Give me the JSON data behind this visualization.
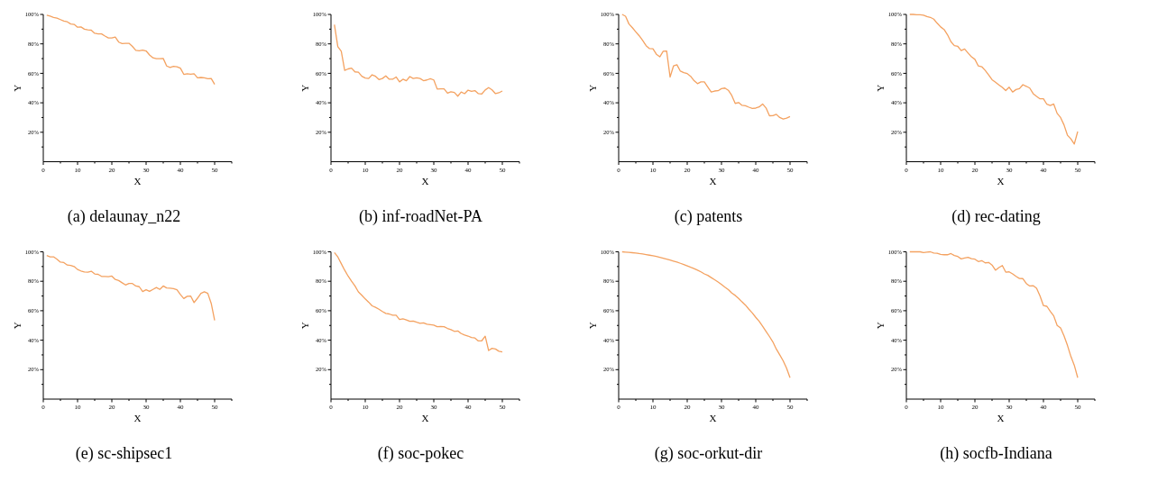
{
  "chart_data": [
    {
      "type": "line",
      "title": "(a) delaunay_n22",
      "xlabel": "X",
      "ylabel": "Y",
      "xlim": [
        0,
        55
      ],
      "ylim": [
        0,
        100
      ],
      "xticks": [
        0,
        {
          "value": 5,
          "label": null
        },
        10,
        {
          "value": 15,
          "label": null
        },
        20,
        {
          "value": 25,
          "label": null
        },
        30,
        {
          "value": 35,
          "label": null
        },
        40,
        {
          "value": 45,
          "label": null
        },
        50,
        {
          "value": 55,
          "label": null
        }
      ],
      "yticks": [
        {
          "value": 10,
          "label": null
        },
        {
          "value": 20,
          "label": "20%"
        },
        {
          "value": 30,
          "label": null
        },
        {
          "value": 40,
          "label": "40%"
        },
        {
          "value": 50,
          "label": null
        },
        {
          "value": 60,
          "label": "60%"
        },
        {
          "value": 70,
          "label": null
        },
        {
          "value": 80,
          "label": "80%"
        },
        {
          "value": 90,
          "label": null
        },
        {
          "value": 100,
          "label": "100%"
        }
      ],
      "x": [
        1,
        2,
        3,
        4,
        5,
        6,
        7,
        8,
        9,
        10,
        11,
        12,
        13,
        14,
        15,
        16,
        17,
        18,
        19,
        20,
        21,
        22,
        23,
        24,
        25,
        26,
        27,
        28,
        29,
        30,
        31,
        32,
        33,
        34,
        35,
        36,
        37,
        38,
        39,
        40,
        41,
        42,
        43,
        44,
        45,
        46,
        47,
        48,
        49,
        50
      ],
      "series": [
        {
          "color": "#f4a261",
          "values": [
            99.5,
            98.8,
            98,
            97.5,
            96.5,
            95.5,
            95,
            93.5,
            93.2,
            91.3,
            91.5,
            90,
            89.5,
            89.3,
            87.2,
            86.8,
            86.8,
            85.3,
            84,
            84,
            84.6,
            81.2,
            80.2,
            80.4,
            80.4,
            78.3,
            75.6,
            75.3,
            75.8,
            75.2,
            72.5,
            70.5,
            69.9,
            69.9,
            70.1,
            65,
            64,
            64.7,
            64.5,
            63.5,
            59.3,
            59.7,
            59.4,
            59.7,
            57,
            57.2,
            57,
            56.3,
            56.5,
            52.5
          ]
        }
      ]
    },
    {
      "type": "line",
      "title": "(b) inf-roadNet-PA",
      "xlabel": "X",
      "ylabel": "Y",
      "xlim": [
        0,
        55
      ],
      "ylim": [
        0,
        100
      ],
      "xticks": [
        0,
        {
          "value": 5,
          "label": null
        },
        10,
        {
          "value": 15,
          "label": null
        },
        20,
        {
          "value": 25,
          "label": null
        },
        30,
        {
          "value": 35,
          "label": null
        },
        40,
        {
          "value": 45,
          "label": null
        },
        50,
        {
          "value": 55,
          "label": null
        }
      ],
      "yticks": [
        {
          "value": 10,
          "label": null
        },
        {
          "value": 20,
          "label": "20%"
        },
        {
          "value": 30,
          "label": null
        },
        {
          "value": 40,
          "label": "40%"
        },
        {
          "value": 50,
          "label": null
        },
        {
          "value": 60,
          "label": "60%"
        },
        {
          "value": 70,
          "label": null
        },
        {
          "value": 80,
          "label": "80%"
        },
        {
          "value": 90,
          "label": null
        },
        {
          "value": 100,
          "label": "100%"
        }
      ],
      "x": [
        1,
        2,
        3,
        4,
        5,
        6,
        7,
        8,
        9,
        10,
        11,
        12,
        13,
        14,
        15,
        16,
        17,
        18,
        19,
        20,
        21,
        22,
        23,
        24,
        25,
        26,
        27,
        28,
        29,
        30,
        31,
        32,
        33,
        34,
        35,
        36,
        37,
        38,
        39,
        40,
        41,
        42,
        43,
        44,
        45,
        46,
        47,
        48,
        49,
        50
      ],
      "series": [
        {
          "color": "#f4a261",
          "values": [
            93,
            78,
            75,
            62,
            63,
            63.5,
            61,
            60.8,
            58,
            56.8,
            56.5,
            59,
            58,
            55.8,
            56.5,
            58.3,
            56,
            56,
            57.5,
            54.2,
            56,
            55,
            57.8,
            56.5,
            57,
            56.5,
            55,
            55.5,
            56.3,
            55.5,
            49.3,
            49.5,
            49.5,
            46.5,
            47.5,
            47,
            44.5,
            47.3,
            46.2,
            48.6,
            47.8,
            48.3,
            46.2,
            46,
            48.7,
            50.3,
            48.8,
            46.2,
            46.8,
            48
          ]
        }
      ]
    },
    {
      "type": "line",
      "title": "(c) patents",
      "xlabel": "X",
      "ylabel": "Y",
      "xlim": [
        0,
        55
      ],
      "ylim": [
        0,
        100
      ],
      "xticks": [
        0,
        {
          "value": 5,
          "label": null
        },
        10,
        {
          "value": 15,
          "label": null
        },
        20,
        {
          "value": 25,
          "label": null
        },
        30,
        {
          "value": 35,
          "label": null
        },
        40,
        {
          "value": 45,
          "label": null
        },
        50,
        {
          "value": 55,
          "label": null
        }
      ],
      "yticks": [
        {
          "value": 10,
          "label": null
        },
        {
          "value": 20,
          "label": "20%"
        },
        {
          "value": 30,
          "label": null
        },
        {
          "value": 40,
          "label": "40%"
        },
        {
          "value": 50,
          "label": null
        },
        {
          "value": 60,
          "label": "60%"
        },
        {
          "value": 70,
          "label": null
        },
        {
          "value": 80,
          "label": "80%"
        },
        {
          "value": 90,
          "label": null
        },
        {
          "value": 100,
          "label": "100%"
        }
      ],
      "x": [
        1,
        2,
        3,
        4,
        5,
        6,
        7,
        8,
        9,
        10,
        11,
        12,
        13,
        14,
        15,
        16,
        17,
        18,
        19,
        20,
        21,
        22,
        23,
        24,
        25,
        26,
        27,
        28,
        29,
        30,
        31,
        32,
        33,
        34,
        35,
        36,
        37,
        38,
        39,
        40,
        41,
        42,
        43,
        44,
        45,
        46,
        47,
        48,
        49,
        50
      ],
      "series": [
        {
          "color": "#f4a261",
          "values": [
            100,
            98.8,
            93.5,
            91,
            88.2,
            85.5,
            82.3,
            78.8,
            76.8,
            76.7,
            73,
            71.2,
            75,
            75.2,
            57.5,
            65,
            65.8,
            61.5,
            60.5,
            59.8,
            58,
            55,
            53,
            54.2,
            54.2,
            50.7,
            47.3,
            48,
            48.2,
            49.6,
            50,
            48.5,
            45,
            39.6,
            40.2,
            38.3,
            38,
            37,
            36.2,
            36.4,
            37.2,
            39.2,
            36.5,
            31.2,
            31.3,
            32.2,
            30,
            29,
            29.6,
            30.6
          ]
        }
      ]
    },
    {
      "type": "line",
      "title": "(d) rec-dating",
      "xlabel": "X",
      "ylabel": "Y",
      "xlim": [
        0,
        55
      ],
      "ylim": [
        0,
        100
      ],
      "xticks": [
        0,
        {
          "value": 5,
          "label": null
        },
        10,
        {
          "value": 15,
          "label": null
        },
        20,
        {
          "value": 25,
          "label": null
        },
        30,
        {
          "value": 35,
          "label": null
        },
        40,
        {
          "value": 45,
          "label": null
        },
        50,
        {
          "value": 55,
          "label": null
        }
      ],
      "yticks": [
        {
          "value": 10,
          "label": null
        },
        {
          "value": 20,
          "label": "20%"
        },
        {
          "value": 30,
          "label": null
        },
        {
          "value": 40,
          "label": "40%"
        },
        {
          "value": 50,
          "label": null
        },
        {
          "value": 60,
          "label": "60%"
        },
        {
          "value": 70,
          "label": null
        },
        {
          "value": 80,
          "label": "80%"
        },
        {
          "value": 90,
          "label": null
        },
        {
          "value": 100,
          "label": "100%"
        }
      ],
      "x": [
        1,
        2,
        3,
        4,
        5,
        6,
        7,
        8,
        9,
        10,
        11,
        12,
        13,
        14,
        15,
        16,
        17,
        18,
        19,
        20,
        21,
        22,
        23,
        24,
        25,
        26,
        27,
        28,
        29,
        30,
        31,
        32,
        33,
        34,
        35,
        36,
        37,
        38,
        39,
        40,
        41,
        42,
        43,
        44,
        45,
        46,
        47,
        48,
        49,
        50
      ],
      "series": [
        {
          "color": "#f4a261",
          "values": [
            100,
            100,
            99.8,
            99.8,
            99.5,
            98.5,
            98,
            96.8,
            94,
            91.5,
            89.8,
            86.2,
            81.5,
            78.8,
            78.3,
            75.5,
            76.5,
            73.8,
            71.2,
            69.5,
            65,
            64.5,
            62,
            59,
            55.7,
            54,
            52.2,
            50.5,
            48.3,
            50.6,
            47.3,
            49,
            49.6,
            52.3,
            51.2,
            50,
            46.2,
            44.3,
            42.7,
            42.7,
            39,
            38.2,
            39.2,
            32.8,
            30,
            25,
            18,
            15.5,
            12,
            20.5
          ]
        }
      ]
    },
    {
      "type": "line",
      "title": "(e) sc-shipsec1",
      "xlabel": "X",
      "ylabel": "Y",
      "xlim": [
        0,
        55
      ],
      "ylim": [
        0,
        100
      ],
      "xticks": [
        0,
        {
          "value": 5,
          "label": null
        },
        10,
        {
          "value": 15,
          "label": null
        },
        20,
        {
          "value": 25,
          "label": null
        },
        30,
        {
          "value": 35,
          "label": null
        },
        40,
        {
          "value": 45,
          "label": null
        },
        50,
        {
          "value": 55,
          "label": null
        }
      ],
      "yticks": [
        {
          "value": 10,
          "label": null
        },
        {
          "value": 20,
          "label": "20%"
        },
        {
          "value": 30,
          "label": null
        },
        {
          "value": 40,
          "label": "40%"
        },
        {
          "value": 50,
          "label": null
        },
        {
          "value": 60,
          "label": "60%"
        },
        {
          "value": 70,
          "label": null
        },
        {
          "value": 80,
          "label": "80%"
        },
        {
          "value": 90,
          "label": null
        },
        {
          "value": 100,
          "label": "100%"
        }
      ],
      "x": [
        1,
        2,
        3,
        4,
        5,
        6,
        7,
        8,
        9,
        10,
        11,
        12,
        13,
        14,
        15,
        16,
        17,
        18,
        19,
        20,
        21,
        22,
        23,
        24,
        25,
        26,
        27,
        28,
        29,
        30,
        31,
        32,
        33,
        34,
        35,
        36,
        37,
        38,
        39,
        40,
        41,
        42,
        43,
        44,
        45,
        46,
        47,
        48,
        49,
        50
      ],
      "series": [
        {
          "color": "#f4a261",
          "values": [
            97.5,
            96.6,
            96.6,
            95,
            93,
            92.7,
            91,
            90.8,
            90,
            88,
            87,
            86.3,
            86.2,
            86.8,
            85,
            84.7,
            83.3,
            83.3,
            83.1,
            83.5,
            81.2,
            80.5,
            79,
            77.5,
            78.5,
            78.5,
            76.8,
            76.3,
            73,
            74.2,
            73.2,
            74.5,
            75.8,
            74.5,
            76.8,
            75.5,
            75.3,
            75,
            74.2,
            71,
            68.3,
            69.8,
            70,
            65.5,
            68.5,
            71.8,
            72.8,
            71.8,
            65,
            53.5
          ]
        }
      ]
    },
    {
      "type": "line",
      "title": "(f) soc-pokec",
      "xlabel": "X",
      "ylabel": "Y",
      "xlim": [
        0,
        55
      ],
      "ylim": [
        0,
        100
      ],
      "xticks": [
        0,
        {
          "value": 5,
          "label": null
        },
        10,
        {
          "value": 15,
          "label": null
        },
        20,
        {
          "value": 25,
          "label": null
        },
        30,
        {
          "value": 35,
          "label": null
        },
        40,
        {
          "value": 45,
          "label": null
        },
        50,
        {
          "value": 55,
          "label": null
        }
      ],
      "yticks": [
        {
          "value": 10,
          "label": null
        },
        {
          "value": 20,
          "label": "20%"
        },
        {
          "value": 30,
          "label": null
        },
        {
          "value": 40,
          "label": "40%"
        },
        {
          "value": 50,
          "label": null
        },
        {
          "value": 60,
          "label": "60%"
        },
        {
          "value": 70,
          "label": null
        },
        {
          "value": 80,
          "label": "80%"
        },
        {
          "value": 90,
          "label": null
        },
        {
          "value": 100,
          "label": "100%"
        }
      ],
      "x": [
        1,
        2,
        3,
        4,
        5,
        6,
        7,
        8,
        9,
        10,
        11,
        12,
        13,
        14,
        15,
        16,
        17,
        18,
        19,
        20,
        21,
        22,
        23,
        24,
        25,
        26,
        27,
        28,
        29,
        30,
        31,
        32,
        33,
        34,
        35,
        36,
        37,
        38,
        39,
        40,
        41,
        42,
        43,
        44,
        45,
        46,
        47,
        48,
        49,
        50
      ],
      "series": [
        {
          "color": "#f4a261",
          "values": [
            99.5,
            96.5,
            92,
            87.5,
            83.5,
            80,
            76.8,
            72.8,
            70.5,
            68,
            65.8,
            63.3,
            62.3,
            61,
            59.5,
            58.2,
            57.8,
            57,
            57,
            54,
            54.5,
            53.8,
            52.8,
            53,
            52.2,
            51.5,
            51.8,
            50.8,
            50.5,
            50.2,
            49.2,
            49.3,
            49.2,
            48,
            47.2,
            46,
            46.3,
            44.5,
            43.5,
            42.8,
            41.8,
            41.5,
            39.5,
            39.6,
            42.7,
            33,
            34.5,
            34,
            32.5,
            32
          ]
        }
      ]
    },
    {
      "type": "line",
      "title": "(g) soc-orkut-dir",
      "xlabel": "X",
      "ylabel": "Y",
      "xlim": [
        0,
        55
      ],
      "ylim": [
        0,
        100
      ],
      "xticks": [
        0,
        {
          "value": 5,
          "label": null
        },
        10,
        {
          "value": 15,
          "label": null
        },
        20,
        {
          "value": 25,
          "label": null
        },
        30,
        {
          "value": 35,
          "label": null
        },
        40,
        {
          "value": 45,
          "label": null
        },
        50,
        {
          "value": 55,
          "label": null
        }
      ],
      "yticks": [
        {
          "value": 10,
          "label": null
        },
        {
          "value": 20,
          "label": "20%"
        },
        {
          "value": 30,
          "label": null
        },
        {
          "value": 40,
          "label": "40%"
        },
        {
          "value": 50,
          "label": null
        },
        {
          "value": 60,
          "label": "60%"
        },
        {
          "value": 70,
          "label": null
        },
        {
          "value": 80,
          "label": "80%"
        },
        {
          "value": 90,
          "label": null
        },
        {
          "value": 100,
          "label": "100%"
        }
      ],
      "x": [
        1,
        2,
        3,
        4,
        5,
        6,
        7,
        8,
        9,
        10,
        11,
        12,
        13,
        14,
        15,
        16,
        17,
        18,
        19,
        20,
        21,
        22,
        23,
        24,
        25,
        26,
        27,
        28,
        29,
        30,
        31,
        32,
        33,
        34,
        35,
        36,
        37,
        38,
        39,
        40,
        41,
        42,
        43,
        44,
        45,
        46,
        47,
        48,
        49,
        50
      ],
      "series": [
        {
          "color": "#f4a261",
          "values": [
            100,
            99.8,
            99.6,
            99.4,
            99.2,
            98.8,
            98.5,
            98.1,
            97.7,
            97.3,
            96.8,
            96.2,
            95.6,
            95,
            94.4,
            93.7,
            93,
            92.2,
            91.4,
            90.5,
            89.5,
            88.6,
            87.5,
            86.4,
            85,
            84,
            82.5,
            81,
            79.5,
            77.8,
            76,
            74.3,
            72,
            70.4,
            68.3,
            66,
            63.8,
            61,
            58.5,
            55.5,
            52.8,
            49.5,
            46,
            42.5,
            38.8,
            34,
            30,
            26,
            21,
            14.5
          ]
        }
      ]
    },
    {
      "type": "line",
      "title": "(h) socfb-Indiana",
      "xlabel": "X",
      "ylabel": "Y",
      "xlim": [
        0,
        55
      ],
      "ylim": [
        0,
        100
      ],
      "xticks": [
        0,
        {
          "value": 5,
          "label": null
        },
        10,
        {
          "value": 15,
          "label": null
        },
        20,
        {
          "value": 25,
          "label": null
        },
        30,
        {
          "value": 35,
          "label": null
        },
        40,
        {
          "value": 45,
          "label": null
        },
        50,
        {
          "value": 55,
          "label": null
        }
      ],
      "yticks": [
        {
          "value": 10,
          "label": null
        },
        {
          "value": 20,
          "label": "20%"
        },
        {
          "value": 30,
          "label": null
        },
        {
          "value": 40,
          "label": "40%"
        },
        {
          "value": 50,
          "label": null
        },
        {
          "value": 60,
          "label": "60%"
        },
        {
          "value": 70,
          "label": null
        },
        {
          "value": 80,
          "label": "80%"
        },
        {
          "value": 90,
          "label": null
        },
        {
          "value": 100,
          "label": "100%"
        }
      ],
      "x": [
        1,
        2,
        3,
        4,
        5,
        6,
        7,
        8,
        9,
        10,
        11,
        12,
        13,
        14,
        15,
        16,
        17,
        18,
        19,
        20,
        21,
        22,
        23,
        24,
        25,
        26,
        27,
        28,
        29,
        30,
        31,
        32,
        33,
        34,
        35,
        36,
        37,
        38,
        39,
        40,
        41,
        42,
        43,
        44,
        45,
        46,
        47,
        48,
        49,
        50
      ],
      "series": [
        {
          "color": "#f4a261",
          "values": [
            100,
            100,
            100,
            100,
            99.5,
            99.8,
            100,
            99.2,
            99,
            98.2,
            98,
            98,
            98.8,
            97.5,
            96.8,
            95.2,
            95.8,
            96.3,
            95.3,
            95,
            93.4,
            94,
            92.5,
            92.8,
            91,
            87.5,
            89.3,
            90.7,
            86.2,
            86.4,
            85,
            83.3,
            81.9,
            81.8,
            78.5,
            76.8,
            77,
            75.2,
            70,
            63.5,
            63,
            59.5,
            56.5,
            50,
            48.3,
            43,
            36.5,
            29,
            23,
            14.5
          ]
        }
      ]
    }
  ]
}
